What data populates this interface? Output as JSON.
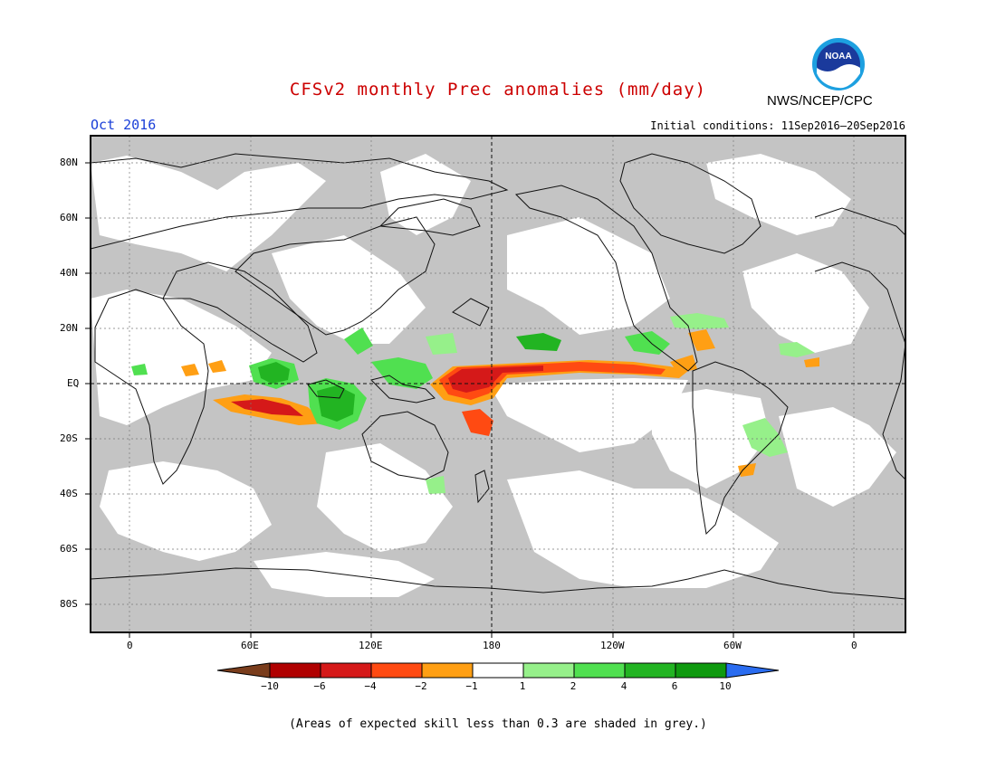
{
  "title": "CFSv2 monthly Prec anomalies (mm/day)",
  "month": "Oct 2016",
  "initial_conditions": "Initial conditions: 11Sep2016–20Sep2016",
  "agency": "NWS/NCEP/CPC",
  "logo_text": "NOAA",
  "colors": {
    "title": "#cc0000",
    "month": "#1a3fd8",
    "land_grey": "#c4c4c4",
    "coast": "#111111"
  },
  "lat_labels": [
    "80N",
    "60N",
    "40N",
    "20N",
    "EQ",
    "20S",
    "40S",
    "60S",
    "80S"
  ],
  "lon_labels": [
    "0",
    "60E",
    "120E",
    "180",
    "120W",
    "60W",
    "0"
  ],
  "colorbar": {
    "labels": [
      "−10",
      "−6",
      "−4",
      "−2",
      "−1",
      "1",
      "2",
      "4",
      "6",
      "10"
    ],
    "colors": [
      "#7a3d1c",
      "#b00000",
      "#d51919",
      "#ff4a12",
      "#ff9f14",
      "#ffffff",
      "#96f08a",
      "#50e050",
      "#22b422",
      "#0f9a0f",
      "#2a6cf0"
    ]
  },
  "footnote": "(Areas of expected skill less than 0.3 are shaded in grey.)"
}
